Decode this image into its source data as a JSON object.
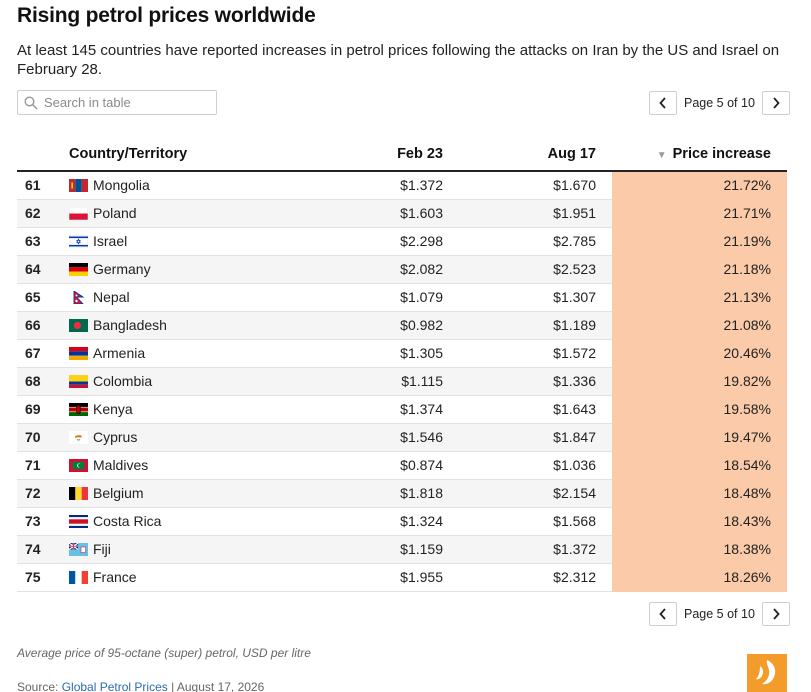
{
  "header": {
    "title": "Rising petrol prices worldwide",
    "subtitle": "At least 145 countries have reported increases in petrol prices following the attacks on Iran by the US and Israel on February 28."
  },
  "search": {
    "placeholder": "Search in table",
    "icon": "search-icon"
  },
  "pagination": {
    "label": "Page 5 of 10",
    "prev_icon": "chevron-left-icon",
    "next_icon": "chevron-right-icon"
  },
  "table": {
    "columns": [
      "Country/Territory",
      "Feb 23",
      "Aug 17",
      "Price increase"
    ],
    "sort_indicator": "▼",
    "highlight_color": "#fbcba9",
    "rows": [
      {
        "rank": "61",
        "country": "Mongolia",
        "flag": "mongolia-flag-icon",
        "feb": "$1.372",
        "aug": "$1.670",
        "increase": "21.72%"
      },
      {
        "rank": "62",
        "country": "Poland",
        "flag": "poland-flag-icon",
        "feb": "$1.603",
        "aug": "$1.951",
        "increase": "21.71%"
      },
      {
        "rank": "63",
        "country": "Israel",
        "flag": "israel-flag-icon",
        "feb": "$2.298",
        "aug": "$2.785",
        "increase": "21.19%"
      },
      {
        "rank": "64",
        "country": "Germany",
        "flag": "germany-flag-icon",
        "feb": "$2.082",
        "aug": "$2.523",
        "increase": "21.18%"
      },
      {
        "rank": "65",
        "country": "Nepal",
        "flag": "nepal-flag-icon",
        "feb": "$1.079",
        "aug": "$1.307",
        "increase": "21.13%"
      },
      {
        "rank": "66",
        "country": "Bangladesh",
        "flag": "bangladesh-flag-icon",
        "feb": "$0.982",
        "aug": "$1.189",
        "increase": "21.08%"
      },
      {
        "rank": "67",
        "country": "Armenia",
        "flag": "armenia-flag-icon",
        "feb": "$1.305",
        "aug": "$1.572",
        "increase": "20.46%"
      },
      {
        "rank": "68",
        "country": "Colombia",
        "flag": "colombia-flag-icon",
        "feb": "$1.115",
        "aug": "$1.336",
        "increase": "19.82%"
      },
      {
        "rank": "69",
        "country": "Kenya",
        "flag": "kenya-flag-icon",
        "feb": "$1.374",
        "aug": "$1.643",
        "increase": "19.58%"
      },
      {
        "rank": "70",
        "country": "Cyprus",
        "flag": "cyprus-flag-icon",
        "feb": "$1.546",
        "aug": "$1.847",
        "increase": "19.47%"
      },
      {
        "rank": "71",
        "country": "Maldives",
        "flag": "maldives-flag-icon",
        "feb": "$0.874",
        "aug": "$1.036",
        "increase": "18.54%"
      },
      {
        "rank": "72",
        "country": "Belgium",
        "flag": "belgium-flag-icon",
        "feb": "$1.818",
        "aug": "$2.154",
        "increase": "18.48%"
      },
      {
        "rank": "73",
        "country": "Costa Rica",
        "flag": "costa-rica-flag-icon",
        "feb": "$1.324",
        "aug": "$1.568",
        "increase": "18.43%"
      },
      {
        "rank": "74",
        "country": "Fiji",
        "flag": "fiji-flag-icon",
        "feb": "$1.159",
        "aug": "$1.372",
        "increase": "18.38%"
      },
      {
        "rank": "75",
        "country": "France",
        "flag": "france-flag-icon",
        "feb": "$1.955",
        "aug": "$2.312",
        "increase": "18.26%"
      }
    ]
  },
  "footer": {
    "note": "Average price of 95-octane (super) petrol, USD per litre",
    "source_prefix": "Source: ",
    "source_link": "Global Petrol Prices",
    "source_suffix": " | August 17, 2026",
    "logo": "al-jazeera-logo-icon"
  }
}
